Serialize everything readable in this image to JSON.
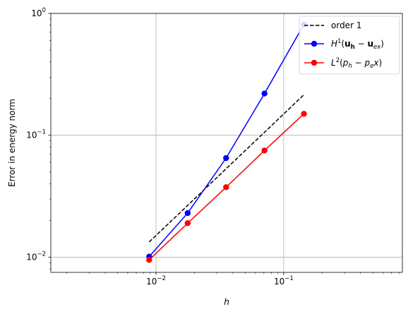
{
  "chart_data": {
    "type": "line",
    "xscale": "log",
    "yscale": "log",
    "xlabel": "h",
    "ylabel": "Error in energy norm",
    "xlim": [
      0.0015,
      0.85
    ],
    "ylim": [
      0.0075,
      1.0
    ],
    "grid": true,
    "legend_position": "upper right",
    "x_ticks": [
      {
        "value": 0.01,
        "base": "10",
        "exp": "−2"
      },
      {
        "value": 0.1,
        "base": "10",
        "exp": "−1"
      }
    ],
    "y_ticks": [
      {
        "value": 0.01,
        "base": "10",
        "exp": "−2"
      },
      {
        "value": 0.1,
        "base": "10",
        "exp": "−1"
      },
      {
        "value": 1.0,
        "base": "10",
        "exp": "0"
      }
    ],
    "series": [
      {
        "name": "order 1",
        "color": "#000000",
        "style": "dashed",
        "marker": "none",
        "x": [
          0.00884,
          0.144
        ],
        "y": [
          0.0133,
          0.215
        ]
      },
      {
        "name": "H1(uh − uex)",
        "legend_parts": {
          "pre": "H",
          "sup": "1",
          "open": "(",
          "u1": "u",
          "sub1": "h",
          "minus": " − ",
          "u2": "u",
          "sub2": "ex",
          "close": ")"
        },
        "color": "#0000ff",
        "style": "solid",
        "marker": "circle",
        "x": [
          0.00884,
          0.0177,
          0.0354,
          0.0707,
          0.144
        ],
        "y": [
          0.0101,
          0.023,
          0.065,
          0.22,
          0.81
        ]
      },
      {
        "name": "L2(ph − pex)",
        "legend_parts": {
          "pre": "L",
          "sup": "2",
          "open": "(",
          "p1": "p",
          "sub1": "h",
          "minus": " − ",
          "p2": "p",
          "sub2": "e",
          "x": "x",
          "close": ")"
        },
        "color": "#ff0000",
        "style": "solid",
        "marker": "circle",
        "x": [
          0.00884,
          0.0177,
          0.0354,
          0.0707,
          0.144
        ],
        "y": [
          0.0095,
          0.019,
          0.0375,
          0.075,
          0.15
        ]
      }
    ]
  }
}
